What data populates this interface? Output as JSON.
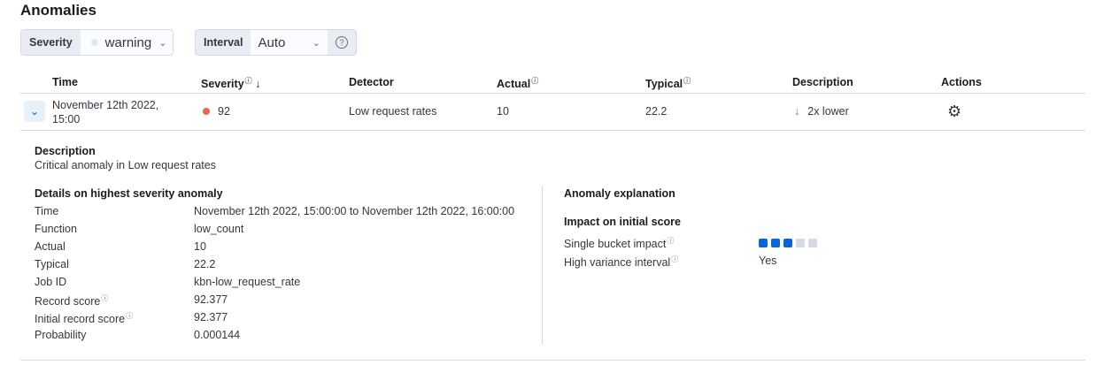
{
  "title": "Anomalies",
  "filters": {
    "severity_label": "Severity",
    "severity_value": "warning",
    "severity_dot_color": "#d6e9f7",
    "interval_label": "Interval",
    "interval_value": "Auto"
  },
  "table": {
    "headers": [
      "Time",
      "Severity",
      "Detector",
      "Actual",
      "Typical",
      "Description",
      "Actions"
    ],
    "row": {
      "time_line1": "November 12th 2022,",
      "time_line2": "15:00",
      "severity": "92",
      "severity_color": "#e7664c",
      "detector": "Low request rates",
      "actual": "10",
      "typical": "22.2",
      "description": "2x lower"
    }
  },
  "details": {
    "description_title": "Description",
    "description": "Critical anomaly in Low request rates",
    "highest_title": "Details on highest severity anomaly",
    "fields": [
      {
        "label": "Time",
        "value": "November 12th 2022, 15:00:00 to November 12th 2022, 16:00:00"
      },
      {
        "label": "Function",
        "value": "low_count"
      },
      {
        "label": "Actual",
        "value": "10"
      },
      {
        "label": "Typical",
        "value": "22.2"
      },
      {
        "label": "Job ID",
        "value": "kbn-low_request_rate"
      },
      {
        "label": "Record score",
        "value": "92.377",
        "help": true
      },
      {
        "label": "Initial record score",
        "value": "92.377",
        "help": true
      },
      {
        "label": "Probability",
        "value": "0.000144"
      }
    ],
    "explanation_title": "Anomaly explanation",
    "impact_title": "Impact on initial score",
    "single_bucket_label": "Single bucket impact",
    "single_bucket_level": 3,
    "single_bucket_max": 5,
    "high_variance_label": "High variance interval",
    "high_variance_value": "Yes"
  }
}
